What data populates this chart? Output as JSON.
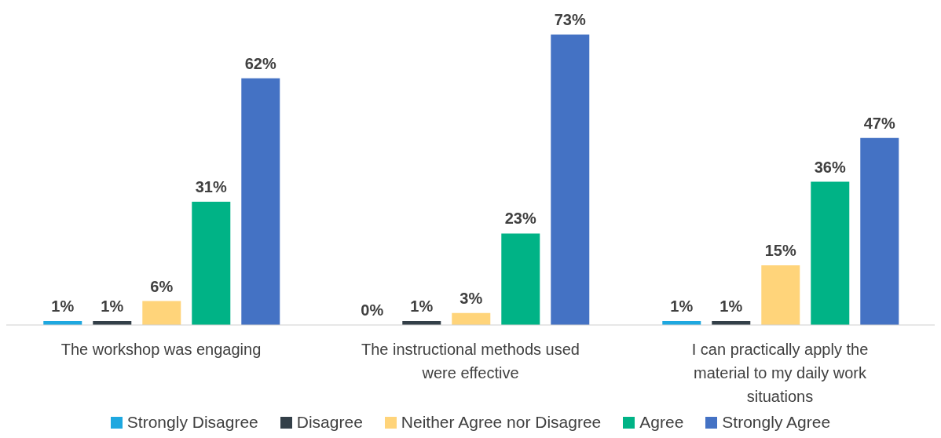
{
  "chart_data": {
    "type": "bar",
    "categories": [
      "The workshop was engaging",
      "The instructional methods used were effective",
      "I can practically apply the material to my daily work situations"
    ],
    "series": [
      {
        "name": "Strongly Disagree",
        "color": "#1ea8e0",
        "values": [
          1,
          0,
          1
        ],
        "value_labels": [
          "1%",
          "0%",
          "1%"
        ]
      },
      {
        "name": "Disagree",
        "color": "#333f48",
        "values": [
          1,
          1,
          1
        ],
        "value_labels": [
          "1%",
          "1%",
          "1%"
        ]
      },
      {
        "name": "Neither Agree nor Disagree",
        "color": "#ffd47a",
        "values": [
          6,
          3,
          15
        ],
        "value_labels": [
          "6%",
          "3%",
          "15%"
        ]
      },
      {
        "name": "Agree",
        "color": "#00b386",
        "values": [
          31,
          23,
          36
        ],
        "value_labels": [
          "31%",
          "23%",
          "36%"
        ]
      },
      {
        "name": "Strongly Agree",
        "color": "#4472c4",
        "values": [
          62,
          73,
          47
        ],
        "value_labels": [
          "62%",
          "73%",
          "47%"
        ]
      }
    ],
    "legend": "bottom",
    "grid": false
  }
}
